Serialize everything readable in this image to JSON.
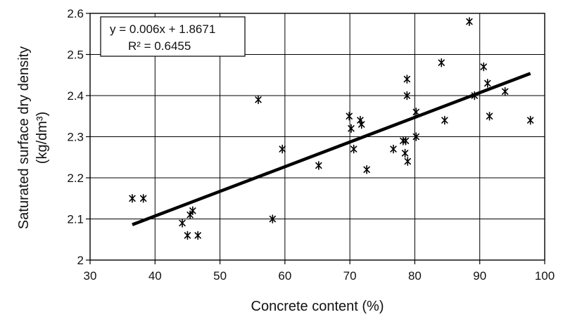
{
  "chart_data": {
    "type": "scatter",
    "xlabel": "Concrete content (%)",
    "ylabel_line1": "Saturated surface dry density",
    "ylabel_line2": "(kg/dm³)",
    "xlim": [
      30,
      100
    ],
    "ylim": [
      2.0,
      2.6
    ],
    "x_ticks": [
      "30",
      "40",
      "50",
      "60",
      "70",
      "80",
      "90",
      "100"
    ],
    "y_ticks": [
      "2",
      "2.1",
      "2.2",
      "2.3",
      "2.4",
      "2.5",
      "2.6"
    ],
    "grid": true,
    "marker": "asterisk",
    "trendline": {
      "type": "linear",
      "slope": 0.006,
      "intercept": 1.8671,
      "x_range": [
        36.5,
        97.8
      ],
      "equation_label": "y = 0.006x + 1.8671",
      "r2_label": "R² = 0.6455"
    },
    "points": [
      {
        "x": 36.5,
        "y": 2.15
      },
      {
        "x": 38.2,
        "y": 2.15
      },
      {
        "x": 44.2,
        "y": 2.09
      },
      {
        "x": 45.0,
        "y": 2.06
      },
      {
        "x": 45.4,
        "y": 2.11
      },
      {
        "x": 45.8,
        "y": 2.12
      },
      {
        "x": 46.6,
        "y": 2.06
      },
      {
        "x": 55.9,
        "y": 2.39
      },
      {
        "x": 58.1,
        "y": 2.1
      },
      {
        "x": 59.6,
        "y": 2.27
      },
      {
        "x": 65.2,
        "y": 2.23
      },
      {
        "x": 69.9,
        "y": 2.35
      },
      {
        "x": 70.2,
        "y": 2.32
      },
      {
        "x": 70.6,
        "y": 2.27
      },
      {
        "x": 71.6,
        "y": 2.34
      },
      {
        "x": 71.8,
        "y": 2.33
      },
      {
        "x": 72.6,
        "y": 2.22
      },
      {
        "x": 76.7,
        "y": 2.27
      },
      {
        "x": 78.2,
        "y": 2.29
      },
      {
        "x": 78.6,
        "y": 2.29
      },
      {
        "x": 78.5,
        "y": 2.26
      },
      {
        "x": 78.8,
        "y": 2.44
      },
      {
        "x": 78.8,
        "y": 2.4
      },
      {
        "x": 78.9,
        "y": 2.24
      },
      {
        "x": 80.2,
        "y": 2.36
      },
      {
        "x": 80.2,
        "y": 2.3
      },
      {
        "x": 84.1,
        "y": 2.48
      },
      {
        "x": 84.6,
        "y": 2.34
      },
      {
        "x": 88.4,
        "y": 2.58
      },
      {
        "x": 89.2,
        "y": 2.4
      },
      {
        "x": 90.6,
        "y": 2.47
      },
      {
        "x": 91.2,
        "y": 2.43
      },
      {
        "x": 91.5,
        "y": 2.35
      },
      {
        "x": 93.9,
        "y": 2.41
      },
      {
        "x": 97.8,
        "y": 2.34
      }
    ]
  }
}
